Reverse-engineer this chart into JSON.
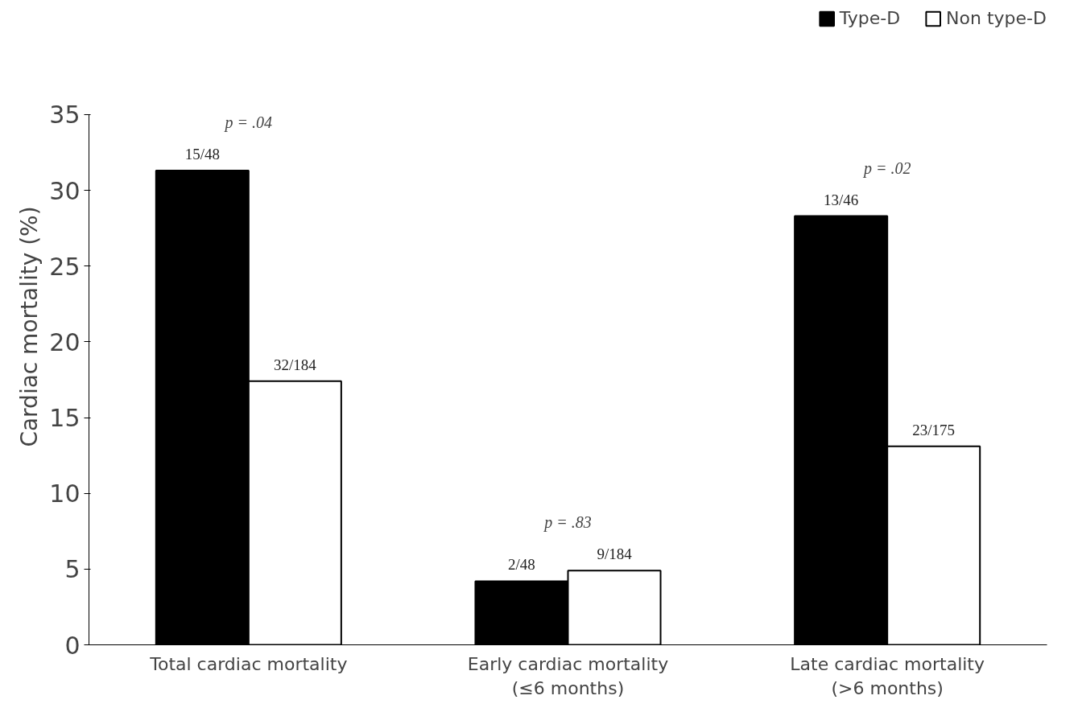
{
  "chart_data": {
    "type": "bar",
    "ylabel": "Cardiac mortality (%)",
    "categories": [
      "Total cardiac mortality",
      "Early cardiac mortality\n(≤6 months)",
      "Late cardiac mortality\n(>6 months)"
    ],
    "series": [
      {
        "name": "Type-D",
        "color": "#000000",
        "values": [
          31.3,
          4.2,
          28.3
        ],
        "value_labels": [
          "15/48",
          "2/48",
          "13/46"
        ]
      },
      {
        "name": "Non type-D",
        "color": "#ffffff",
        "values": [
          17.4,
          4.9,
          13.1
        ],
        "value_labels": [
          "32/184",
          "9/184",
          "23/175"
        ]
      }
    ],
    "ylim": [
      0,
      35
    ],
    "yticks": [
      0,
      5,
      10,
      15,
      20,
      25,
      30,
      35
    ],
    "grid": false,
    "legend": "top right",
    "annotations": [
      "p = .04",
      "p = .83",
      "p = .02"
    ]
  }
}
